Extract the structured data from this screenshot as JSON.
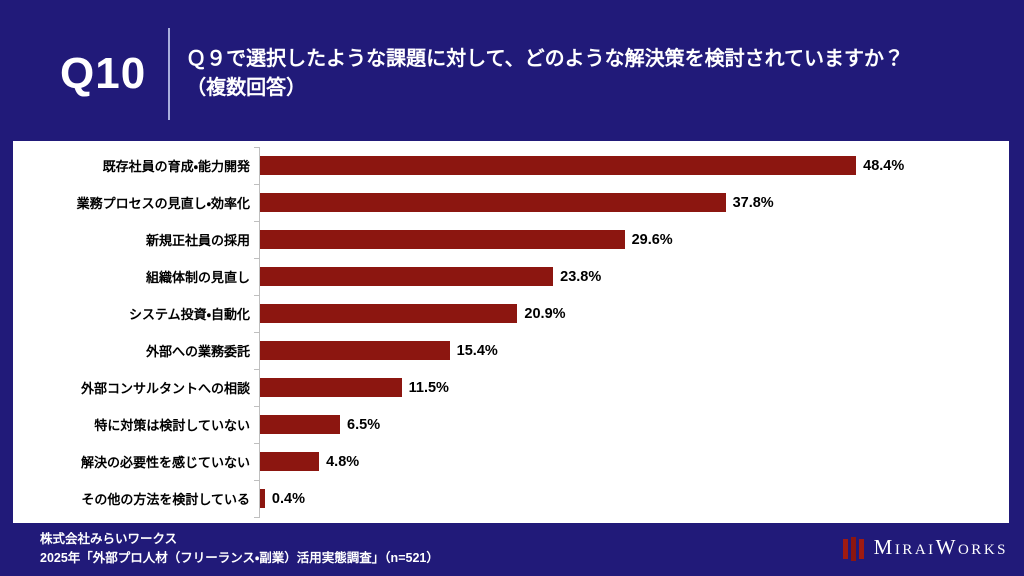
{
  "header": {
    "question_number": "Q10",
    "question_line1": "Ｑ９で選択したような課題に対して、どのような解決策を検討されていますか？",
    "question_line2": "（複数回答）"
  },
  "chart_data": {
    "type": "bar",
    "orientation": "horizontal",
    "title": "",
    "xlabel": "",
    "ylabel": "",
    "xlim": [
      0,
      60
    ],
    "grid": false,
    "legend": "none",
    "bar_color": "#8C1610",
    "categories": [
      "既存社員の育成・能力開発",
      "業務プロセスの見直し・効率化",
      "新規正社員の採用",
      "組織体制の見直し",
      "システム投資・自動化",
      "外部への業務委託",
      "外部コンサルタントへの相談",
      "特に対策は検討していない",
      "解決の必要性を感じていない",
      "その他の方法を検討している"
    ],
    "values": [
      48.4,
      37.8,
      29.6,
      23.8,
      20.9,
      15.4,
      11.5,
      6.5,
      4.8,
      0.4
    ],
    "value_labels": [
      "48.4%",
      "37.8%",
      "29.6%",
      "23.8%",
      "20.9%",
      "15.4%",
      "11.5%",
      "6.5%",
      "4.8%",
      "0.4%"
    ]
  },
  "footer": {
    "company": "株式会社みらいワークス",
    "survey": "2025年「外部プロ人材（フリーランス・副業）活用実態調査」（n=521）",
    "logo_text": "MiraiWorks"
  },
  "colors": {
    "background": "#211A79",
    "panel": "#FFFFFF",
    "bar": "#8C1610",
    "axis": "#BFBFBF",
    "logo_red": "#A01B12",
    "header_text": "#FFFFFF"
  }
}
